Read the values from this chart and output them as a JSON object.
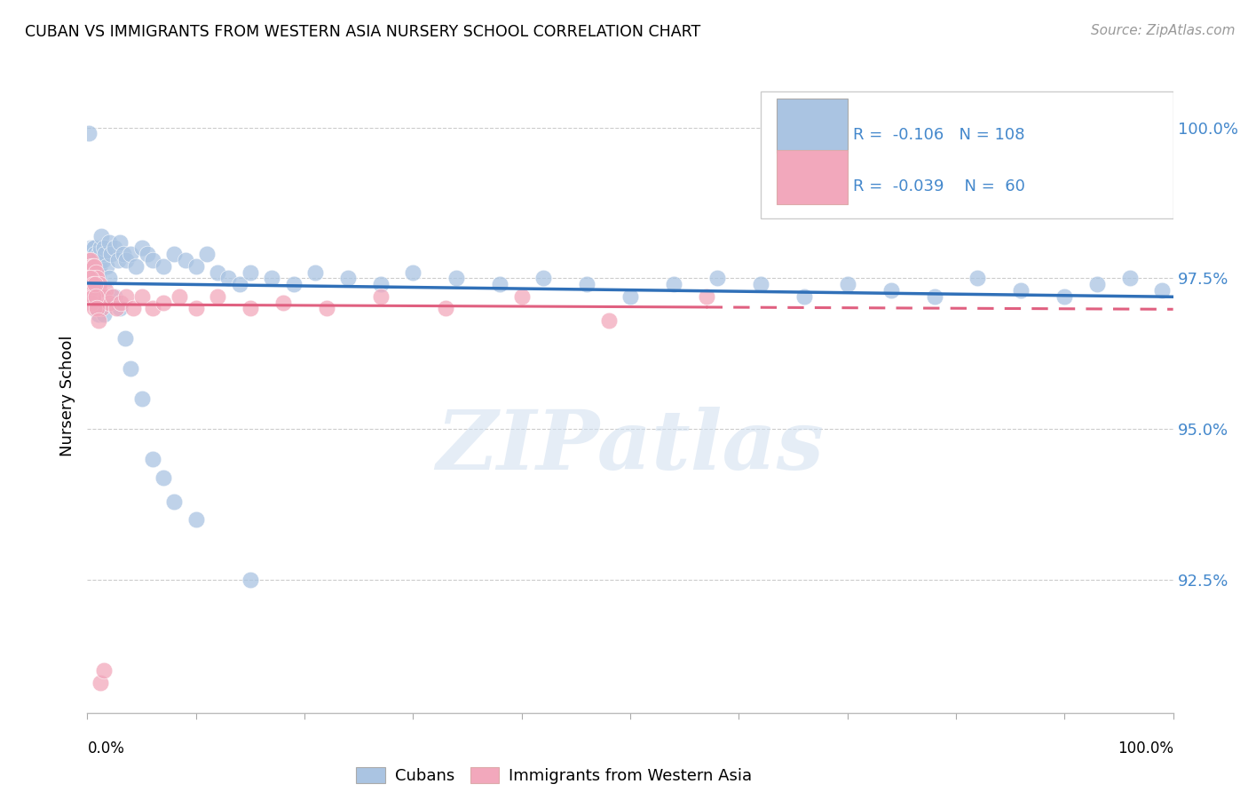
{
  "title": "CUBAN VS IMMIGRANTS FROM WESTERN ASIA NURSERY SCHOOL CORRELATION CHART",
  "source": "Source: ZipAtlas.com",
  "ylabel": "Nursery School",
  "legend_label1": "Cubans",
  "legend_label2": "Immigrants from Western Asia",
  "watermark": "ZIPatlas",
  "r1": -0.106,
  "n1": 108,
  "r2": -0.039,
  "n2": 60,
  "color_blue": "#aac4e2",
  "color_pink": "#f2a8bc",
  "color_line_blue": "#3070b8",
  "color_line_pink": "#e06080",
  "color_ytick": "#4488cc",
  "xlim": [
    0.0,
    1.0
  ],
  "ylim_min": 0.903,
  "ylim_max": 1.008,
  "yticks": [
    0.925,
    0.95,
    0.975,
    1.0
  ],
  "ytick_labels": [
    "92.5%",
    "95.0%",
    "97.5%",
    "100.0%"
  ],
  "blue_x": [
    0.001,
    0.002,
    0.002,
    0.003,
    0.003,
    0.003,
    0.003,
    0.004,
    0.004,
    0.004,
    0.004,
    0.005,
    0.005,
    0.005,
    0.005,
    0.005,
    0.006,
    0.006,
    0.006,
    0.006,
    0.006,
    0.007,
    0.007,
    0.007,
    0.007,
    0.008,
    0.008,
    0.008,
    0.009,
    0.009,
    0.01,
    0.01,
    0.011,
    0.012,
    0.013,
    0.014,
    0.015,
    0.016,
    0.018,
    0.02,
    0.022,
    0.025,
    0.028,
    0.03,
    0.033,
    0.036,
    0.04,
    0.045,
    0.05,
    0.055,
    0.06,
    0.07,
    0.08,
    0.09,
    0.1,
    0.11,
    0.12,
    0.13,
    0.14,
    0.15,
    0.17,
    0.19,
    0.21,
    0.24,
    0.27,
    0.3,
    0.34,
    0.38,
    0.42,
    0.46,
    0.5,
    0.54,
    0.58,
    0.62,
    0.66,
    0.7,
    0.74,
    0.78,
    0.82,
    0.86,
    0.9,
    0.93,
    0.96,
    0.99,
    0.003,
    0.004,
    0.005,
    0.005,
    0.006,
    0.006,
    0.007,
    0.007,
    0.008,
    0.009,
    0.01,
    0.012,
    0.015,
    0.02,
    0.025,
    0.03,
    0.035,
    0.04,
    0.05,
    0.06,
    0.07,
    0.08,
    0.1,
    0.15
  ],
  "blue_y": [
    0.999,
    0.978,
    0.975,
    0.98,
    0.978,
    0.976,
    0.975,
    0.979,
    0.977,
    0.976,
    0.975,
    0.98,
    0.978,
    0.977,
    0.975,
    0.974,
    0.98,
    0.978,
    0.977,
    0.975,
    0.974,
    0.979,
    0.977,
    0.976,
    0.974,
    0.978,
    0.976,
    0.975,
    0.977,
    0.975,
    0.979,
    0.976,
    0.977,
    0.98,
    0.982,
    0.978,
    0.98,
    0.979,
    0.977,
    0.981,
    0.979,
    0.98,
    0.978,
    0.981,
    0.979,
    0.978,
    0.979,
    0.977,
    0.98,
    0.979,
    0.978,
    0.977,
    0.979,
    0.978,
    0.977,
    0.979,
    0.976,
    0.975,
    0.974,
    0.976,
    0.975,
    0.974,
    0.976,
    0.975,
    0.974,
    0.976,
    0.975,
    0.974,
    0.975,
    0.974,
    0.972,
    0.974,
    0.975,
    0.974,
    0.972,
    0.974,
    0.973,
    0.972,
    0.975,
    0.973,
    0.972,
    0.974,
    0.975,
    0.973,
    0.977,
    0.975,
    0.974,
    0.972,
    0.975,
    0.974,
    0.972,
    0.975,
    0.973,
    0.971,
    0.969,
    0.972,
    0.969,
    0.975,
    0.972,
    0.97,
    0.965,
    0.96,
    0.955,
    0.945,
    0.942,
    0.938,
    0.935,
    0.925
  ],
  "pink_x": [
    0.001,
    0.002,
    0.002,
    0.003,
    0.003,
    0.003,
    0.004,
    0.004,
    0.004,
    0.005,
    0.005,
    0.005,
    0.006,
    0.006,
    0.006,
    0.007,
    0.007,
    0.008,
    0.008,
    0.009,
    0.01,
    0.011,
    0.012,
    0.013,
    0.015,
    0.017,
    0.02,
    0.023,
    0.027,
    0.031,
    0.036,
    0.042,
    0.05,
    0.06,
    0.07,
    0.085,
    0.1,
    0.12,
    0.15,
    0.18,
    0.22,
    0.27,
    0.33,
    0.4,
    0.48,
    0.57,
    0.001,
    0.002,
    0.003,
    0.003,
    0.004,
    0.005,
    0.005,
    0.006,
    0.007,
    0.008,
    0.009,
    0.01,
    0.012,
    0.015
  ],
  "pink_y": [
    0.978,
    0.976,
    0.974,
    0.978,
    0.975,
    0.973,
    0.977,
    0.975,
    0.973,
    0.977,
    0.975,
    0.973,
    0.977,
    0.975,
    0.973,
    0.975,
    0.973,
    0.976,
    0.974,
    0.975,
    0.973,
    0.974,
    0.972,
    0.97,
    0.972,
    0.973,
    0.971,
    0.972,
    0.97,
    0.971,
    0.972,
    0.97,
    0.972,
    0.97,
    0.971,
    0.972,
    0.97,
    0.972,
    0.97,
    0.971,
    0.97,
    0.972,
    0.97,
    0.972,
    0.968,
    0.972,
    0.975,
    0.972,
    0.975,
    0.973,
    0.971,
    0.974,
    0.972,
    0.97,
    0.974,
    0.972,
    0.97,
    0.968,
    0.908,
    0.91
  ]
}
